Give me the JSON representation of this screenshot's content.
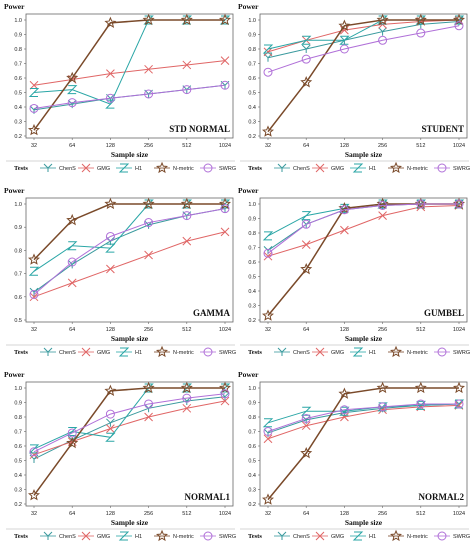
{
  "figure": {
    "y_title": "Power",
    "x_title": "Sample size",
    "legend_title": "Tests",
    "x_ticks": [
      "32",
      "64",
      "128",
      "256",
      "512",
      "1024"
    ]
  },
  "series_styles": [
    {
      "name": "ChenS",
      "color": "#3a9a9e",
      "marker": "y-marker"
    },
    {
      "name": "GMG",
      "color": "#e06666",
      "marker": "x-marker"
    },
    {
      "name": "H1",
      "color": "#2aa6a6",
      "marker": "z-marker"
    },
    {
      "name": "N-metric",
      "color": "#7a4a2a",
      "marker": "star-marker"
    },
    {
      "name": "SWRG",
      "color": "#b070d8",
      "marker": "circle-marker"
    }
  ],
  "chart_data": [
    {
      "type": "line",
      "panel_label": "STD NORMAL",
      "x": [
        32,
        64,
        128,
        256,
        512,
        1024
      ],
      "ylim": [
        0.2,
        1.0
      ],
      "y_ticks": [
        "0.2",
        "0.3",
        "0.4",
        "0.5",
        "0.6",
        "0.7",
        "0.8",
        "0.9",
        "1.0"
      ],
      "series": [
        {
          "name": "ChenS",
          "values": [
            0.38,
            0.42,
            0.46,
            0.49,
            0.52,
            0.55
          ]
        },
        {
          "name": "GMG",
          "values": [
            0.55,
            0.59,
            0.63,
            0.66,
            0.69,
            0.72
          ]
        },
        {
          "name": "H1",
          "values": [
            0.5,
            0.52,
            0.42,
            1.0,
            1.0,
            1.0
          ]
        },
        {
          "name": "N-metric",
          "values": [
            0.24,
            0.6,
            0.98,
            1.0,
            1.0,
            1.0
          ]
        },
        {
          "name": "SWRG",
          "values": [
            0.39,
            0.43,
            0.46,
            0.49,
            0.52,
            0.55
          ]
        }
      ]
    },
    {
      "type": "line",
      "panel_label": "STUDENT",
      "x": [
        32,
        64,
        128,
        256,
        512,
        1024
      ],
      "ylim": [
        0.2,
        1.0
      ],
      "y_ticks": [
        "0.2",
        "0.3",
        "0.4",
        "0.5",
        "0.6",
        "0.7",
        "0.8",
        "0.9",
        "1.0"
      ],
      "series": [
        {
          "name": "ChenS",
          "values": [
            0.74,
            0.8,
            0.86,
            0.92,
            0.97,
            0.99
          ]
        },
        {
          "name": "GMG",
          "values": [
            0.78,
            0.86,
            0.93,
            0.97,
            0.99,
            1.0
          ]
        },
        {
          "name": "H1",
          "values": [
            0.8,
            0.86,
            0.86,
            1.0,
            1.0,
            1.0
          ]
        },
        {
          "name": "N-metric",
          "values": [
            0.23,
            0.57,
            0.96,
            1.0,
            1.0,
            1.0
          ]
        },
        {
          "name": "SWRG",
          "values": [
            0.64,
            0.73,
            0.8,
            0.86,
            0.91,
            0.96
          ]
        }
      ]
    },
    {
      "type": "line",
      "panel_label": "GAMMA",
      "x": [
        32,
        64,
        128,
        256,
        512,
        1024
      ],
      "ylim": [
        0.5,
        1.0
      ],
      "y_ticks": [
        "0.5",
        "0.6",
        "0.7",
        "0.8",
        "0.9",
        "1.0"
      ],
      "series": [
        {
          "name": "ChenS",
          "values": [
            0.62,
            0.74,
            0.84,
            0.91,
            0.95,
            0.98
          ]
        },
        {
          "name": "GMG",
          "values": [
            0.6,
            0.66,
            0.72,
            0.78,
            0.84,
            0.88
          ]
        },
        {
          "name": "H1",
          "values": [
            0.71,
            0.82,
            0.81,
            1.0,
            1.0,
            1.0
          ]
        },
        {
          "name": "N-metric",
          "values": [
            0.76,
            0.93,
            1.0,
            1.0,
            1.0,
            1.0
          ]
        },
        {
          "name": "SWRG",
          "values": [
            0.61,
            0.75,
            0.86,
            0.92,
            0.95,
            0.98
          ]
        }
      ]
    },
    {
      "type": "line",
      "panel_label": "GUMBEL",
      "x": [
        32,
        64,
        128,
        256,
        512,
        1024
      ],
      "ylim": [
        0.2,
        1.0
      ],
      "y_ticks": [
        "0.2",
        "0.3",
        "0.4",
        "0.5",
        "0.6",
        "0.7",
        "0.8",
        "0.9",
        "1.0"
      ],
      "series": [
        {
          "name": "ChenS",
          "values": [
            0.68,
            0.86,
            0.96,
            0.99,
            1.0,
            1.0
          ]
        },
        {
          "name": "GMG",
          "values": [
            0.64,
            0.72,
            0.82,
            0.92,
            0.98,
            0.99
          ]
        },
        {
          "name": "H1",
          "values": [
            0.78,
            0.92,
            0.97,
            1.0,
            1.0,
            1.0
          ]
        },
        {
          "name": "N-metric",
          "values": [
            0.23,
            0.55,
            0.97,
            1.0,
            1.0,
            1.0
          ]
        },
        {
          "name": "SWRG",
          "values": [
            0.66,
            0.86,
            0.96,
            0.99,
            1.0,
            1.0
          ]
        }
      ]
    },
    {
      "type": "line",
      "panel_label": "NORMAL1",
      "x": [
        32,
        64,
        128,
        256,
        512,
        1024
      ],
      "ylim": [
        0.2,
        1.0
      ],
      "y_ticks": [
        "0.2",
        "0.3",
        "0.4",
        "0.5",
        "0.6",
        "0.7",
        "0.8",
        "0.9",
        "1.0"
      ],
      "series": [
        {
          "name": "ChenS",
          "values": [
            0.51,
            0.64,
            0.76,
            0.86,
            0.91,
            0.94
          ]
        },
        {
          "name": "GMG",
          "values": [
            0.54,
            0.63,
            0.72,
            0.8,
            0.86,
            0.91
          ]
        },
        {
          "name": "H1",
          "values": [
            0.58,
            0.7,
            0.66,
            1.0,
            1.0,
            1.0
          ]
        },
        {
          "name": "N-metric",
          "values": [
            0.26,
            0.62,
            0.98,
            1.0,
            1.0,
            1.0
          ]
        },
        {
          "name": "SWRG",
          "values": [
            0.56,
            0.69,
            0.82,
            0.89,
            0.93,
            0.96
          ]
        }
      ]
    },
    {
      "type": "line",
      "panel_label": "NORMAL2",
      "x": [
        32,
        64,
        128,
        256,
        512,
        1024
      ],
      "ylim": [
        0.2,
        1.0
      ],
      "y_ticks": [
        "0.2",
        "0.3",
        "0.4",
        "0.5",
        "0.6",
        "0.7",
        "0.8",
        "0.9",
        "1.0"
      ],
      "series": [
        {
          "name": "ChenS",
          "values": [
            0.69,
            0.78,
            0.83,
            0.86,
            0.88,
            0.89
          ]
        },
        {
          "name": "GMG",
          "values": [
            0.65,
            0.74,
            0.8,
            0.85,
            0.87,
            0.88
          ]
        },
        {
          "name": "H1",
          "values": [
            0.76,
            0.84,
            0.84,
            0.87,
            0.88,
            0.89
          ]
        },
        {
          "name": "N-metric",
          "values": [
            0.23,
            0.55,
            0.96,
            1.0,
            1.0,
            1.0
          ]
        },
        {
          "name": "SWRG",
          "values": [
            0.7,
            0.79,
            0.85,
            0.87,
            0.89,
            0.89
          ]
        }
      ]
    }
  ]
}
